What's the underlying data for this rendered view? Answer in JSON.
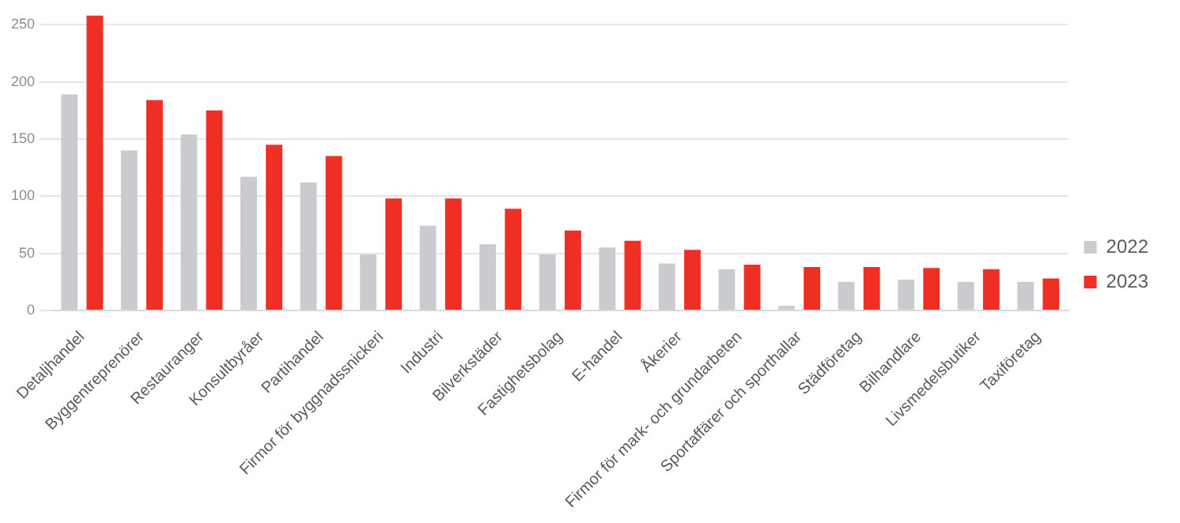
{
  "chart_data": {
    "type": "bar",
    "categories": [
      "Detaljhandel",
      "Byggentreprenörer",
      "Restauranger",
      "Konsultbyråer",
      "Partihandel",
      "Firmor för byggnadssnickeri",
      "Industri",
      "Bilverkstäder",
      "Fastighetsbolag",
      "E-handel",
      "Åkerier",
      "Firmor för mark- och grundarbeten",
      "Sportaffärer och sporthallar",
      "Städföretag",
      "Bilhandlare",
      "Livsmedelsbutiker",
      "Taxiföretag"
    ],
    "series": [
      {
        "name": "2022",
        "color": "#c9cbcf",
        "values": [
          189,
          140,
          154,
          117,
          112,
          49,
          74,
          58,
          49,
          55,
          41,
          36,
          4,
          25,
          27,
          25,
          25
        ]
      },
      {
        "name": "2023",
        "color": "#ef2e24",
        "values": [
          258,
          184,
          175,
          145,
          135,
          98,
          98,
          89,
          70,
          61,
          53,
          40,
          38,
          38,
          37,
          36,
          28
        ]
      }
    ],
    "ylim": [
      0,
      260
    ],
    "yticks": [
      0,
      50,
      100,
      150,
      200,
      250
    ],
    "grid": "y",
    "legend": "right"
  }
}
